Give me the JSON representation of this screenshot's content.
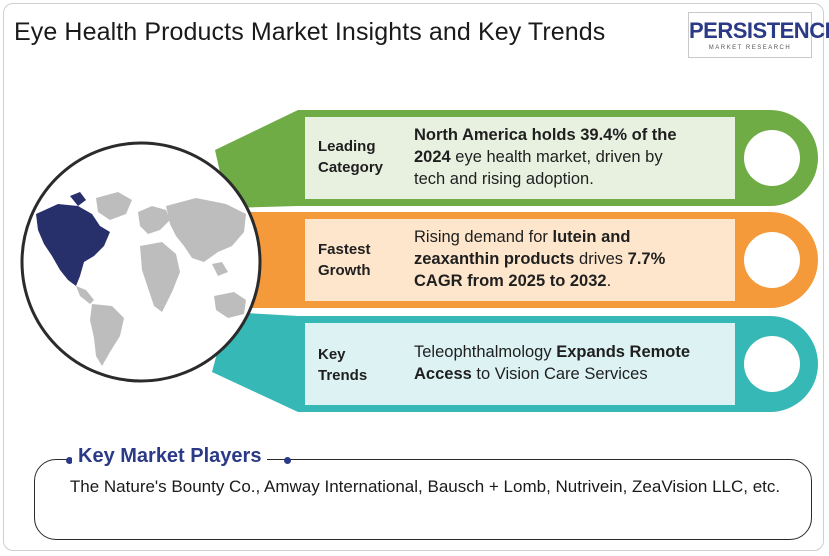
{
  "title": "Eye Health Products Market Insights and Key Trends",
  "logo": {
    "name": "PERSISTENCE",
    "subtitle": "MARKET RESEARCH"
  },
  "rows": [
    {
      "category": [
        "Leading",
        "Category"
      ],
      "color": "#6fac46",
      "panel": "#e8f1e0",
      "lines": [
        [
          {
            "t": "North America holds 39.4% of the",
            "b": true
          }
        ],
        [
          {
            "t": "2024",
            "b": true
          },
          {
            "t": " eye health market, driven by",
            "b": false
          }
        ],
        [
          {
            "t": "tech and rising adoption.",
            "b": false
          }
        ]
      ]
    },
    {
      "category": [
        "Fastest",
        "Growth"
      ],
      "color": "#f59a3b",
      "panel": "#fde6cc",
      "lines": [
        [
          {
            "t": "Rising demand for ",
            "b": false
          },
          {
            "t": "lutein and",
            "b": true
          }
        ],
        [
          {
            "t": "zeaxanthin products",
            "b": true
          },
          {
            "t": " drives ",
            "b": false
          },
          {
            "t": "7.7%",
            "b": true
          }
        ],
        [
          {
            "t": "CAGR from 2025 to 2032",
            "b": true
          },
          {
            "t": ".",
            "b": false
          }
        ]
      ]
    },
    {
      "category": [
        "Key",
        "Trends"
      ],
      "color": "#35b8b6",
      "panel": "#dcf2f3",
      "lines": [
        [
          {
            "t": "Teleophthalmology ",
            "b": false
          },
          {
            "t": "Expands Remote",
            "b": true
          }
        ],
        [
          {
            "t": "Access",
            "b": true
          },
          {
            "t": " to Vision Care Services",
            "b": false
          }
        ]
      ]
    }
  ],
  "players": {
    "heading": "Key Market Players",
    "text": "The Nature's Bounty Co., Amway International,  Bausch + Lomb, Nutrivein, ZeaVision LLC, etc."
  },
  "map_icon": "world-map-north-america-highlighted"
}
